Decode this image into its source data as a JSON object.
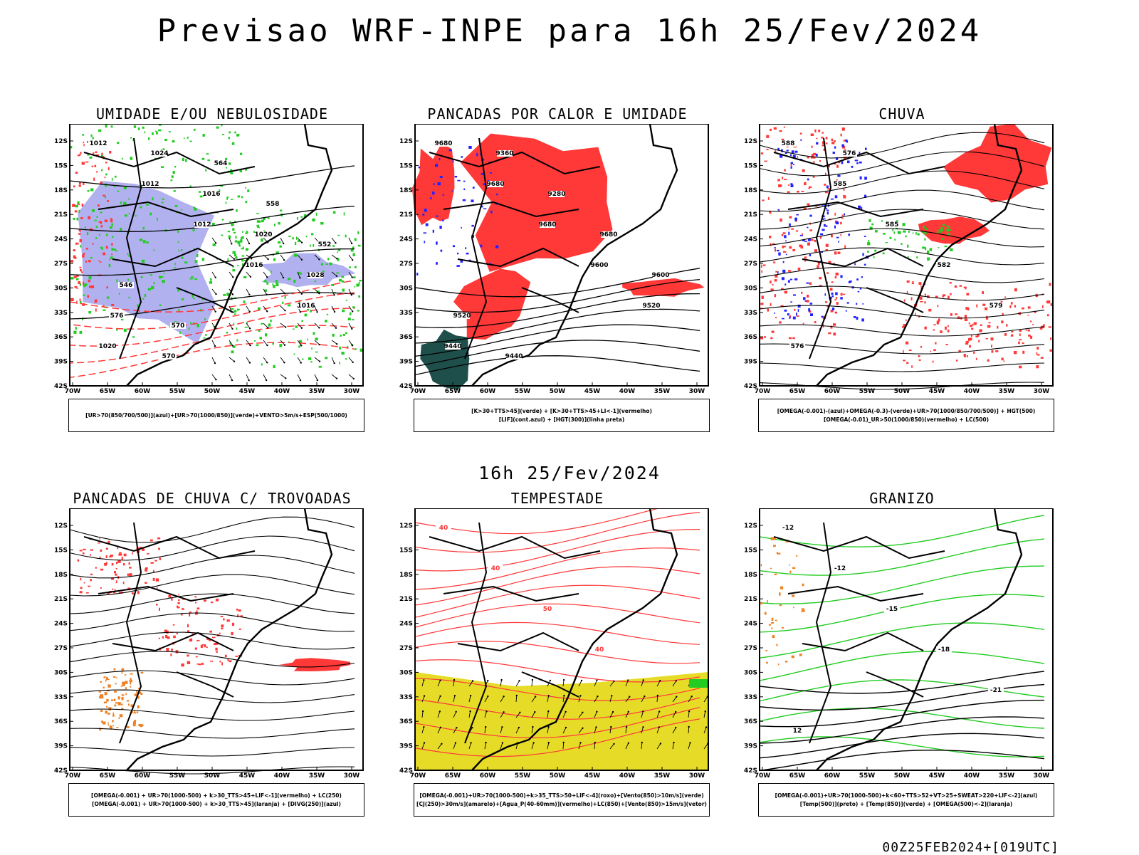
{
  "page": {
    "main_title": "Previsao WRF-INPE  para 16h 25/Fev/2024",
    "mid_title": "16h 25/Fev/2024",
    "footer": "00Z25FEB2024+[019UTC]"
  },
  "colors": {
    "humid_blue": "#a8a8ee",
    "green": "#22cc22",
    "red": "#ff3838",
    "blue": "#2222ff",
    "darkgreen": "#1f4f4a",
    "orange": "#f08020",
    "yellow": "#e6dc28",
    "black": "#000000"
  },
  "chart_data": [
    {
      "type": "map",
      "title": "UMIDADE E/OU NEBULOSIDADE",
      "legend": [
        "[UR>70(850/700/500)](azul)+[UR>70(1000/850)](verde)+VENTO>5m/s+ESP(500/1000)"
      ],
      "x_ticks": [
        "70W",
        "65W",
        "60W",
        "55W",
        "50W",
        "45W",
        "40W",
        "35W",
        "30W"
      ],
      "y_ticks": [
        "12S",
        "15S",
        "18S",
        "21S",
        "24S",
        "27S",
        "30S",
        "33S",
        "36S",
        "39S",
        "42S"
      ],
      "contour_labels": [
        "1012",
        "1012",
        "1012",
        "1016",
        "1016",
        "1020",
        "1024",
        "1016",
        "1020",
        "1028",
        "576",
        "570",
        "564",
        "558",
        "552",
        "546",
        "570"
      ]
    },
    {
      "type": "map",
      "title": "PANCADAS POR CALOR E UMIDADE",
      "legend": [
        "[K>30+TTS>45](verde) + [K>30+TTS>45+LI<-1](vermelho)",
        "[LIF](cont.azul) + [HGT(300)](linha preta)"
      ],
      "x_ticks": [
        "70W",
        "65W",
        "60W",
        "55W",
        "50W",
        "45W",
        "40W",
        "35W",
        "30W"
      ],
      "y_ticks": [
        "12S",
        "15S",
        "18S",
        "21S",
        "24S",
        "27S",
        "30S",
        "33S",
        "36S",
        "39S",
        "42S"
      ],
      "contour_labels": [
        "9680",
        "9680",
        "9680",
        "9600",
        "9520",
        "9440",
        "9360",
        "9280",
        "9680",
        "9600",
        "9520",
        "9440"
      ]
    },
    {
      "type": "map",
      "title": "CHUVA",
      "legend": [
        "[OMEGA(-0.001)-(azul)+OMEGA(-0.3)-(verde)+UR>70(1000/850/700/500)] + HGT(500)",
        "[OMEGA(-0.01)_UR>50(1000/850)(vermelho) + LC(500)"
      ],
      "x_ticks": [
        "70W",
        "65W",
        "60W",
        "55W",
        "50W",
        "45W",
        "40W",
        "35W",
        "30W"
      ],
      "y_ticks": [
        "12S",
        "15S",
        "18S",
        "21S",
        "24S",
        "27S",
        "30S",
        "33S",
        "36S",
        "39S",
        "42S"
      ],
      "contour_labels": [
        "588",
        "585",
        "585",
        "582",
        "579",
        "576",
        "576"
      ]
    },
    {
      "type": "map",
      "title": "PANCADAS DE CHUVA C/ TROVOADAS",
      "legend": [
        "[OMEGA(-0.001) + UR>70(1000-500) + k>30_TTS>45+LIF<-1](vermelho) + LC(250)",
        "[OMEGA(-0.001) + UR>70(1000-500) + k>30_TTS>45](laranja) + [DIVG(250)](azul)"
      ],
      "x_ticks": [
        "70W",
        "65W",
        "60W",
        "55W",
        "50W",
        "45W",
        "40W",
        "35W",
        "30W"
      ],
      "y_ticks": [
        "12S",
        "15S",
        "18S",
        "21S",
        "24S",
        "27S",
        "30S",
        "33S",
        "36S",
        "39S",
        "42S"
      ],
      "contour_labels": []
    },
    {
      "type": "map",
      "title": "TEMPESTADE",
      "legend": [
        "[OMEGA(-0.001)+UR>70(1000-500)+k>35_TTS>50+LIF<-4](roxo)+[Vento(850)>10m/s](verde)",
        "[CJ(250)>30m/s](amarelo)+[Agua_P(40-60mm)](vermelho)+LC(850)+[Vento(850)>15m/s](vetor)"
      ],
      "x_ticks": [
        "70W",
        "65W",
        "60W",
        "55W",
        "50W",
        "45W",
        "40W",
        "35W",
        "30W"
      ],
      "y_ticks": [
        "12S",
        "15S",
        "18S",
        "21S",
        "24S",
        "27S",
        "30S",
        "33S",
        "36S",
        "39S",
        "42S"
      ],
      "contour_labels": [
        "40",
        "40",
        "50",
        "40"
      ]
    },
    {
      "type": "map",
      "title": "GRANIZO",
      "legend": [
        "[OMEGA(-0.001)+UR>70(1000-500)+k<60+TTS>52+VT>25+SWEAT>220+LIF<-2](azul)",
        "[Temp(500)](preto) + [Temp(850)](verde) + [OMEGA(500)<-2](laranja)"
      ],
      "x_ticks": [
        "70W",
        "65W",
        "60W",
        "55W",
        "50W",
        "45W",
        "40W",
        "35W",
        "30W"
      ],
      "y_ticks": [
        "12S",
        "15S",
        "18S",
        "21S",
        "24S",
        "27S",
        "30S",
        "33S",
        "36S",
        "39S",
        "42S"
      ],
      "contour_labels": [
        "-12",
        "-12",
        "-15",
        "-18",
        "-21",
        "12"
      ]
    }
  ]
}
